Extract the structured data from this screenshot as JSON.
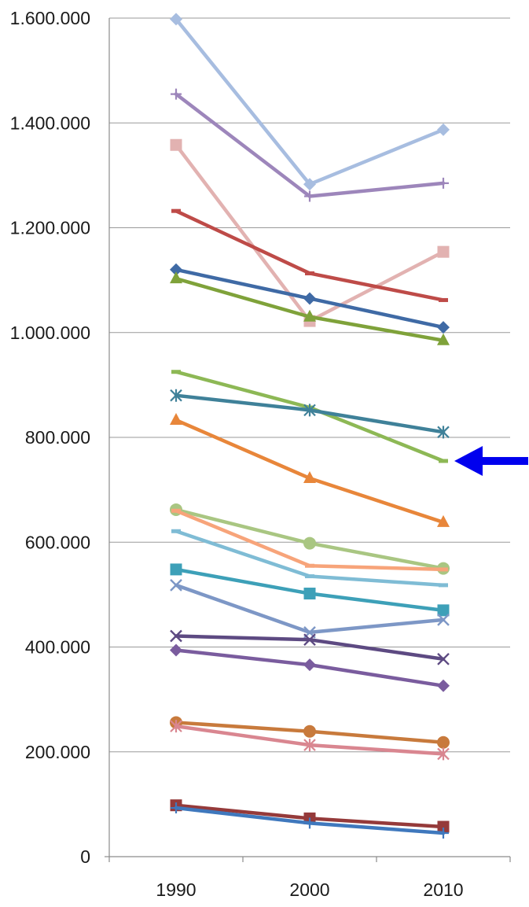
{
  "chart_data": {
    "type": "line",
    "categories": [
      "1990",
      "2000",
      "2010"
    ],
    "ylim": [
      0,
      1600000
    ],
    "yticks": [
      0,
      200000,
      400000,
      600000,
      800000,
      1000000,
      1200000,
      1400000,
      1600000
    ],
    "ytick_labels": [
      "0",
      "200.000",
      "400.000",
      "600.000",
      "800.000",
      "1.000.000",
      "1.200.000",
      "1.400.000",
      "1.600.000"
    ],
    "grid": true,
    "series": [
      {
        "values": [
          1598000,
          1283000,
          1387000
        ],
        "color": "#a7bde0",
        "marker": "diamond"
      },
      {
        "values": [
          1455000,
          1260000,
          1285000
        ],
        "color": "#9d86bb",
        "marker": "plus"
      },
      {
        "values": [
          1358000,
          1022000,
          1154000
        ],
        "color": "#e2b2b1",
        "marker": "square"
      },
      {
        "values": [
          1232000,
          1113000,
          1062000
        ],
        "color": "#be4b48",
        "marker": "dash"
      },
      {
        "values": [
          1120000,
          1065000,
          1010000
        ],
        "color": "#3f6aa5",
        "marker": "diamond"
      },
      {
        "values": [
          1103000,
          1030000,
          985000
        ],
        "color": "#7fa23a",
        "marker": "triangle"
      },
      {
        "values": [
          925000,
          857000,
          755000
        ],
        "color": "#8db855",
        "marker": "dash"
      },
      {
        "values": [
          880000,
          852000,
          810000
        ],
        "color": "#3f8199",
        "marker": "star"
      },
      {
        "values": [
          833000,
          722000,
          638000
        ],
        "color": "#e8863a",
        "marker": "triangle"
      },
      {
        "values": [
          662000,
          598000,
          550000
        ],
        "color": "#a9c682",
        "marker": "circle"
      },
      {
        "values": [
          660000,
          555000,
          548000
        ],
        "color": "#f7a47a",
        "marker": "dash"
      },
      {
        "values": [
          621000,
          535000,
          518000
        ],
        "color": "#7fbcd5",
        "marker": "dash"
      },
      {
        "values": [
          548000,
          502000,
          470000
        ],
        "color": "#3da0b8",
        "marker": "square"
      },
      {
        "values": [
          518000,
          428000,
          452000
        ],
        "color": "#7d97c6",
        "marker": "x"
      },
      {
        "values": [
          421000,
          414000,
          377000
        ],
        "color": "#5d4a82",
        "marker": "x"
      },
      {
        "values": [
          394000,
          366000,
          326000
        ],
        "color": "#7a5c9e",
        "marker": "diamond"
      },
      {
        "values": [
          256000,
          239000,
          218000
        ],
        "color": "#c87a3c",
        "marker": "circle"
      },
      {
        "values": [
          249000,
          213000,
          196000
        ],
        "color": "#d98690",
        "marker": "star"
      },
      {
        "values": [
          98000,
          73000,
          57000
        ],
        "color": "#953a3a",
        "marker": "square"
      },
      {
        "values": [
          93000,
          64000,
          45000
        ],
        "color": "#3f78bd",
        "marker": "plus"
      }
    ],
    "annotation": {
      "type": "arrow",
      "color": "#0000ee",
      "target_category": "2010",
      "target_value": 755000
    }
  }
}
